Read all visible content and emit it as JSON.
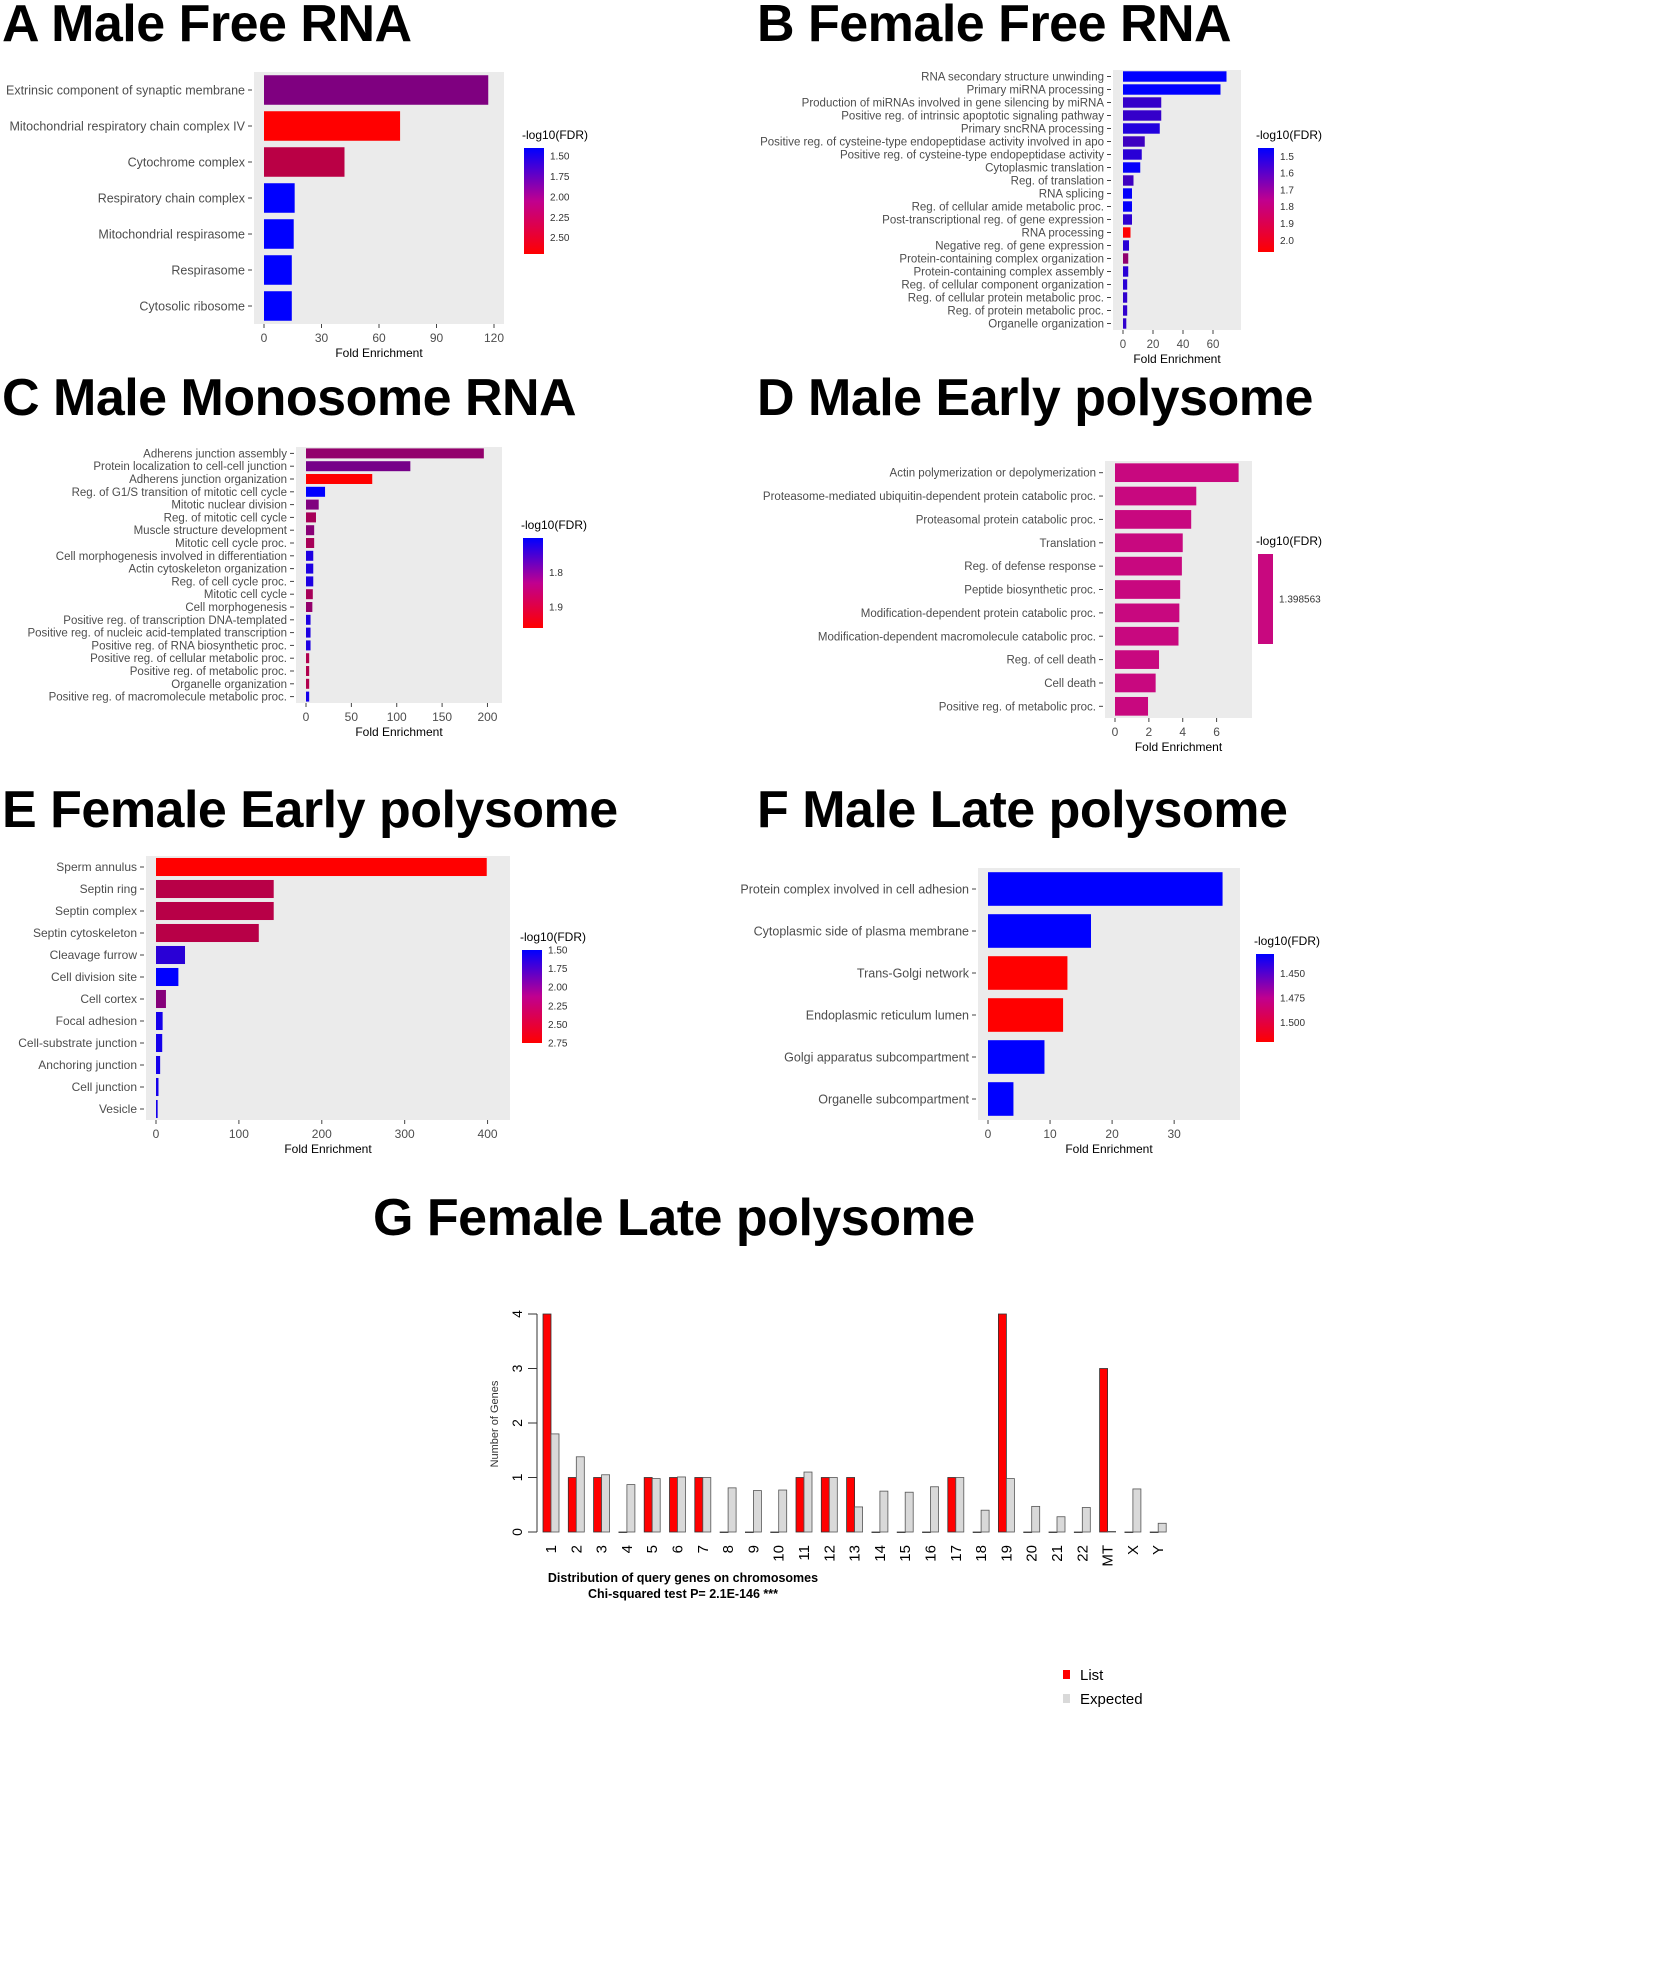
{
  "figure": {
    "panels": [
      {
        "id": "A",
        "title": "A Male Free RNA"
      },
      {
        "id": "B",
        "title": "B Female Free RNA"
      },
      {
        "id": "C",
        "title": "C Male Monosome RNA"
      },
      {
        "id": "D",
        "title": "D Male Early polysome"
      },
      {
        "id": "E",
        "title": "E Female Early polysome"
      },
      {
        "id": "F",
        "title": "F Male Late polysome"
      },
      {
        "id": "G",
        "title": "G Female Late polysome"
      }
    ]
  },
  "colors": {
    "low": "#0000ff",
    "high": "#ff0000",
    "panel_bg": "#ebebeb",
    "list": "#ff0000",
    "expected": "#d9d9d9"
  },
  "chart_data": [
    {
      "panel": "A",
      "type": "bar",
      "orientation": "horizontal",
      "title": "A Male Free RNA",
      "xlabel": "Fold Enrichment",
      "xlim": [
        0,
        120
      ],
      "xticks": [
        0,
        30,
        60,
        90,
        120
      ],
      "legend": {
        "title": "-log10(FDR)",
        "ticks": [
          "1.50",
          "1.75",
          "2.00",
          "2.25",
          "2.50"
        ],
        "range": [
          1.4,
          2.7
        ],
        "placement": "right"
      },
      "categories": [
        "Extrinsic component of synaptic membrane",
        "Mitochondrial respiratory chain complex IV",
        "Cytochrome complex",
        "Respiratory chain complex",
        "Mitochondrial respirasome",
        "Respirasome",
        "Cytosolic ribosome"
      ],
      "values": [
        117,
        71,
        42,
        16,
        15.5,
        14.5,
        14.5
      ],
      "color_values": [
        2.05,
        2.7,
        2.35,
        1.4,
        1.4,
        1.4,
        1.4
      ]
    },
    {
      "panel": "B",
      "type": "bar",
      "orientation": "horizontal",
      "title": "B Female Free RNA",
      "xlabel": "Fold Enrichment",
      "xlim": [
        0,
        72
      ],
      "xticks": [
        0,
        20,
        40,
        60
      ],
      "legend": {
        "title": "-log10(FDR)",
        "ticks": [
          "1.5",
          "1.6",
          "1.7",
          "1.8",
          "1.9",
          "2.0"
        ],
        "range": [
          1.45,
          2.07
        ],
        "placement": "right"
      },
      "categories": [
        "RNA secondary structure unwinding",
        "Primary miRNA processing",
        "Production of miRNAs involved in gene silencing by miRNA",
        "Positive reg. of intrinsic apoptotic signaling pathway",
        "Primary sncRNA processing",
        "Positive reg. of cysteine-type endopeptidase activity involved in apo",
        "Positive reg. of cysteine-type endopeptidase activity",
        "Cytoplasmic translation",
        "Reg. of translation",
        "RNA splicing",
        "Reg. of cellular amide metabolic proc.",
        "Post-transcriptional reg. of gene expression",
        "RNA processing",
        "Negative reg. of gene expression",
        "Protein-containing complex organization",
        "Protein-containing complex assembly",
        "Reg. of cellular component organization",
        "Reg. of cellular protein metabolic proc.",
        "Reg. of protein metabolic proc.",
        "Organelle organization"
      ],
      "values": [
        69,
        65,
        25.5,
        25.5,
        24.5,
        14.5,
        12.5,
        11.5,
        7,
        6,
        6,
        6,
        5,
        4,
        3.5,
        3.5,
        2.8,
        2.8,
        2.8,
        2.2
      ],
      "color_values": [
        1.45,
        1.45,
        1.58,
        1.58,
        1.53,
        1.6,
        1.55,
        1.46,
        1.6,
        1.46,
        1.46,
        1.56,
        2.07,
        1.55,
        1.8,
        1.55,
        1.55,
        1.57,
        1.57,
        1.57
      ]
    },
    {
      "panel": "C",
      "type": "bar",
      "orientation": "horizontal",
      "title": "C Male Monosome RNA",
      "xlabel": "Fold Enrichment",
      "xlim": [
        0,
        205
      ],
      "xticks": [
        0,
        50,
        100,
        150,
        200
      ],
      "legend": {
        "title": "-log10(FDR)",
        "ticks": [
          "1.8",
          "1.9"
        ],
        "range": [
          1.7,
          1.96
        ],
        "placement": "right"
      },
      "categories": [
        "Adherens junction assembly",
        "Protein localization to cell-cell junction",
        "Adherens junction organization",
        "Reg. of G1/S transition of mitotic cell cycle",
        "Mitotic nuclear division",
        "Reg. of mitotic cell cycle",
        "Muscle structure development",
        "Mitotic cell cycle proc.",
        "Cell morphogenesis involved in differentiation",
        "Actin cytoskeleton organization",
        "Reg. of cell cycle proc.",
        "Mitotic cell cycle",
        "Cell morphogenesis",
        "Positive reg. of transcription DNA-templated",
        "Positive reg. of nucleic acid-templated transcription",
        "Positive reg. of RNA biosynthetic proc.",
        "Positive reg. of cellular metabolic proc.",
        "Positive reg. of metabolic proc.",
        "Organelle organization",
        "Positive reg. of macromolecule metabolic proc."
      ],
      "values": [
        196,
        115,
        73,
        21,
        14,
        11,
        9,
        9,
        8,
        8,
        8,
        7.5,
        7,
        5,
        5,
        5,
        3.5,
        3.5,
        3.5,
        3.5
      ],
      "color_values": [
        1.85,
        1.82,
        1.96,
        1.7,
        1.83,
        1.87,
        1.84,
        1.87,
        1.73,
        1.73,
        1.73,
        1.87,
        1.85,
        1.73,
        1.73,
        1.73,
        1.88,
        1.88,
        1.88,
        1.72
      ]
    },
    {
      "panel": "D",
      "type": "bar",
      "orientation": "horizontal",
      "title": "D Male Early polysome",
      "xlabel": "Fold Enrichment",
      "xlim": [
        0,
        7.5
      ],
      "xticks": [
        0,
        2,
        4,
        6
      ],
      "legend": {
        "title": "-log10(FDR)",
        "ticks": [
          "1.398563"
        ],
        "range": [
          1.398563,
          1.398563
        ],
        "placement": "right"
      },
      "categories": [
        "Actin polymerization or depolymerization",
        "Proteasome-mediated ubiquitin-dependent protein catabolic proc.",
        "Proteasomal protein catabolic proc.",
        "Translation",
        "Reg. of defense response",
        "Peptide biosynthetic proc.",
        "Modification-dependent protein catabolic proc.",
        "Modification-dependent macromolecule catabolic proc.",
        "Reg. of cell death",
        "Cell death",
        "Positive reg. of metabolic proc."
      ],
      "values": [
        7.3,
        4.8,
        4.5,
        4.0,
        3.95,
        3.85,
        3.8,
        3.75,
        2.6,
        2.4,
        1.95
      ],
      "color_values": [
        1.398563,
        1.398563,
        1.398563,
        1.398563,
        1.398563,
        1.398563,
        1.398563,
        1.398563,
        1.398563,
        1.398563,
        1.398563
      ],
      "single_color": "#c8087f"
    },
    {
      "panel": "E",
      "type": "bar",
      "orientation": "horizontal",
      "title": "E Female Early polysome",
      "xlabel": "Fold Enrichment",
      "xlim": [
        0,
        415
      ],
      "xticks": [
        0,
        100,
        200,
        300,
        400
      ],
      "legend": {
        "title": "-log10(FDR)",
        "ticks": [
          "1.50",
          "1.75",
          "2.00",
          "2.25",
          "2.50",
          "2.75"
        ],
        "range": [
          1.5,
          2.75
        ],
        "placement": "right"
      },
      "categories": [
        "Sperm annulus",
        "Septin ring",
        "Septin complex",
        "Septin cytoskeleton",
        "Cleavage furrow",
        "Cell division site",
        "Cell cortex",
        "Focal adhesion",
        "Cell-substrate junction",
        "Anchoring junction",
        "Cell junction",
        "Vesicle"
      ],
      "values": [
        399,
        142,
        142,
        124,
        35,
        27,
        12,
        8,
        7.5,
        5,
        3,
        2
      ],
      "color_values": [
        2.78,
        2.4,
        2.4,
        2.4,
        1.7,
        1.5,
        2.15,
        1.6,
        1.6,
        1.6,
        1.6,
        1.6
      ]
    },
    {
      "panel": "F",
      "type": "bar",
      "orientation": "horizontal",
      "title": "F Male Late polysome",
      "xlabel": "Fold Enrichment",
      "xlim": [
        0,
        39
      ],
      "xticks": [
        0,
        10,
        20,
        30
      ],
      "legend": {
        "title": "-log10(FDR)",
        "ticks": [
          "1.450",
          "1.475",
          "1.500"
        ],
        "range": [
          1.43,
          1.52
        ],
        "placement": "right"
      },
      "categories": [
        "Protein complex involved in cell adhesion",
        "Cytoplasmic side of plasma membrane",
        "Trans-Golgi network",
        "Endoplasmic reticulum lumen",
        "Golgi apparatus subcompartment",
        "Organelle subcompartment"
      ],
      "values": [
        37.8,
        16.6,
        12.8,
        12.1,
        9.1,
        4.1
      ],
      "color_values": [
        1.43,
        1.43,
        1.52,
        1.52,
        1.43,
        1.43
      ]
    },
    {
      "panel": "G",
      "type": "bar",
      "orientation": "vertical",
      "title": "Distribution of query genes on chromosomes",
      "subtitle": "Chi-squared test P= 2.1E-146 ***",
      "xlabel": "",
      "ylabel": "Number of Genes",
      "ylim": [
        0,
        4
      ],
      "yticks": [
        0,
        1,
        2,
        3,
        4
      ],
      "categories": [
        "1",
        "2",
        "3",
        "4",
        "5",
        "6",
        "7",
        "8",
        "9",
        "10",
        "11",
        "12",
        "13",
        "14",
        "15",
        "16",
        "17",
        "18",
        "19",
        "20",
        "21",
        "22",
        "MT",
        "X",
        "Y"
      ],
      "series": [
        {
          "name": "List",
          "values": [
            4,
            1,
            1,
            0,
            1,
            1,
            1,
            0,
            0,
            0,
            1,
            1,
            1,
            0,
            0,
            0,
            1,
            0,
            4,
            0,
            0,
            0,
            3,
            0,
            0
          ]
        },
        {
          "name": "Expected",
          "values": [
            1.8,
            1.38,
            1.05,
            0.87,
            0.98,
            1.01,
            1.0,
            0.81,
            0.76,
            0.77,
            1.1,
            1.0,
            0.46,
            0.75,
            0.73,
            0.83,
            1.0,
            0.4,
            0.98,
            0.47,
            0.28,
            0.45,
            0.01,
            0.79,
            0.16
          ]
        }
      ],
      "legend": {
        "entries": [
          "List",
          "Expected"
        ],
        "placement": "top-right"
      }
    }
  ]
}
